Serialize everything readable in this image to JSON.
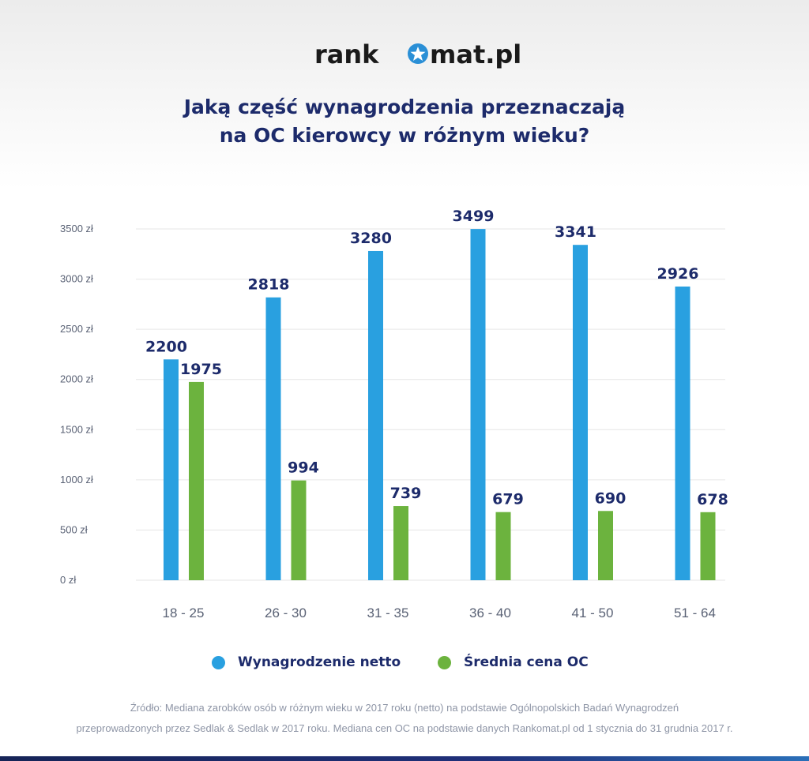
{
  "logo": {
    "text": "rankomat.pl",
    "part1": "rank",
    "part2": "mat.pl",
    "star_color": "#2a8fd6",
    "text_color": "#1a1a1a"
  },
  "title": {
    "line1": "Jaką część wynagrodzenia przeznaczają",
    "line2": "na OC kierowcy w różnym wieku?"
  },
  "colors": {
    "accent_text": "#1d2b6b",
    "series_blue": "#29a0e0",
    "series_green": "#6cb33e",
    "axis_text": "#5a6275",
    "grid": "#e6e6e6"
  },
  "chart_data": {
    "type": "bar",
    "title": "Jaką część wynagrodzenia przeznaczają na OC kierowcy w różnym wieku?",
    "categories": [
      "18 - 25",
      "26 - 30",
      "31 - 35",
      "36 - 40",
      "41 - 50",
      "51 - 64"
    ],
    "series": [
      {
        "name": "Wynagrodzenie netto",
        "color": "#29a0e0",
        "values": [
          2200,
          2818,
          3280,
          3499,
          3341,
          2926
        ],
        "labels": [
          "2200",
          "2818",
          "3280",
          "3499",
          "3341",
          "2926"
        ]
      },
      {
        "name": "Średnia cena OC",
        "color": "#6cb33e",
        "values": [
          1975,
          994,
          739,
          679,
          690,
          678
        ],
        "labels": [
          "1975",
          "994",
          "739",
          "679",
          "690",
          "678"
        ]
      }
    ],
    "ylim": [
      0,
      3500
    ],
    "yticks": [
      {
        "value": 0,
        "label": "0 zł"
      },
      {
        "value": 500,
        "label": "500 zł"
      },
      {
        "value": 1000,
        "label": "1000 zł"
      },
      {
        "value": 1500,
        "label": "1500 zł"
      },
      {
        "value": 2000,
        "label": "2000 zł"
      },
      {
        "value": 2500,
        "label": "2500 zł"
      },
      {
        "value": 3000,
        "label": "3000 zł"
      },
      {
        "value": 3500,
        "label": "3500 zł"
      }
    ],
    "grid": true,
    "legend_position": "bottom",
    "xlabel": "",
    "ylabel": ""
  },
  "legend": {
    "item1": "Wynagrodzenie netto",
    "item2": "Średnia cena OC"
  },
  "source": {
    "line1": "Źródło:  Mediana zarobków osób w różnym wieku w 2017 roku (netto) na podstawie Ogólnopolskich Badań Wynagrodzeń",
    "line2": "przeprowadzonych przez Sedlak & Sedlak w 2017 roku. Mediana cen OC na podstawie danych Rankomat.pl od 1 stycznia do 31 grudnia 2017 r."
  }
}
